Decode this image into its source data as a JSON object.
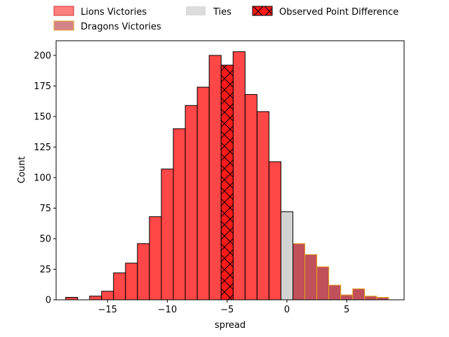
{
  "chart_data": {
    "type": "bar",
    "xlabel": "spread",
    "ylabel": "Count",
    "xlim": [
      -19.3,
      9.8
    ],
    "ylim": [
      0,
      212
    ],
    "xticks": [
      -15,
      -10,
      -5,
      0,
      5
    ],
    "xtick_labels": [
      "−15",
      "−10",
      "−5",
      "0",
      "5"
    ],
    "yticks": [
      0,
      25,
      50,
      75,
      100,
      125,
      150,
      175,
      200
    ],
    "yticklabels": [
      "0",
      "25",
      "50",
      "75",
      "100",
      "125",
      "150",
      "175",
      "200"
    ],
    "grid": false,
    "legend_position": "top",
    "bin_width": 1,
    "series": [
      {
        "name": "Lions Victories",
        "color": "#ff0000",
        "bins": [
          {
            "x0": -18.5,
            "x1": -17.5,
            "count": 2
          },
          {
            "x0": -17.5,
            "x1": -16.5,
            "count": 0
          },
          {
            "x0": -16.5,
            "x1": -15.5,
            "count": 3
          },
          {
            "x0": -15.5,
            "x1": -14.5,
            "count": 7
          },
          {
            "x0": -14.5,
            "x1": -13.5,
            "count": 22
          },
          {
            "x0": -13.5,
            "x1": -12.5,
            "count": 30
          },
          {
            "x0": -12.5,
            "x1": -11.5,
            "count": 46
          },
          {
            "x0": -11.5,
            "x1": -10.5,
            "count": 68
          },
          {
            "x0": -10.5,
            "x1": -9.5,
            "count": 107
          },
          {
            "x0": -9.5,
            "x1": -8.5,
            "count": 140
          },
          {
            "x0": -8.5,
            "x1": -7.5,
            "count": 159
          },
          {
            "x0": -7.5,
            "x1": -6.5,
            "count": 174
          },
          {
            "x0": -6.5,
            "x1": -5.5,
            "count": 200
          },
          {
            "x0": -4.5,
            "x1": -3.5,
            "count": 203
          },
          {
            "x0": -3.5,
            "x1": -2.5,
            "count": 168
          },
          {
            "x0": -2.5,
            "x1": -1.5,
            "count": 154
          },
          {
            "x0": -1.5,
            "x1": -0.5,
            "count": 113
          }
        ]
      },
      {
        "name": "Dragons Victories",
        "color": "#c0505a",
        "edge": "#e8a020",
        "bins": [
          {
            "x0": 0.5,
            "x1": 1.5,
            "count": 46
          },
          {
            "x0": 1.5,
            "x1": 2.5,
            "count": 37
          },
          {
            "x0": 2.5,
            "x1": 3.5,
            "count": 27
          },
          {
            "x0": 3.5,
            "x1": 4.5,
            "count": 12
          },
          {
            "x0": 4.5,
            "x1": 5.5,
            "count": 4
          },
          {
            "x0": 5.5,
            "x1": 6.5,
            "count": 9
          },
          {
            "x0": 6.5,
            "x1": 7.5,
            "count": 3
          },
          {
            "x0": 7.5,
            "x1": 8.5,
            "count": 2
          }
        ]
      },
      {
        "name": "Ties",
        "color": "#d3d3d3",
        "bins": [
          {
            "x0": -0.5,
            "x1": 0.5,
            "count": 72
          }
        ]
      },
      {
        "name": "Observed Point Difference",
        "color": "#ff1a1a",
        "hatch": "x",
        "bins": [
          {
            "x0": -5.5,
            "x1": -4.5,
            "count": 192
          }
        ]
      }
    ]
  }
}
